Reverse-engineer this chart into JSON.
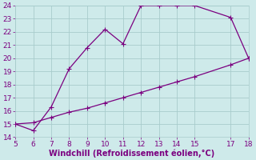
{
  "xlabel": "Windchill (Refroidissement éolien,°C)",
  "x_main": [
    5,
    6,
    7,
    8,
    9,
    10,
    11,
    12,
    13,
    14,
    15,
    17,
    18
  ],
  "y_main": [
    15,
    14.5,
    16.3,
    19.2,
    20.8,
    22.2,
    21.1,
    24.0,
    24.0,
    24.0,
    24.0,
    23.1,
    20.0
  ],
  "x_second": [
    5,
    6,
    7,
    8,
    9,
    10,
    11,
    12,
    13,
    14,
    15,
    17,
    18
  ],
  "y_second": [
    15.0,
    15.1,
    15.5,
    15.9,
    16.2,
    16.6,
    17.0,
    17.4,
    17.8,
    18.2,
    18.6,
    19.5,
    20.0
  ],
  "line_color": "#7b0080",
  "bg_color": "#ceeaea",
  "grid_color": "#a8cccc",
  "xlim": [
    5,
    18
  ],
  "ylim": [
    14,
    24
  ],
  "xticks": [
    5,
    6,
    7,
    8,
    9,
    10,
    11,
    12,
    13,
    14,
    15,
    17,
    18
  ],
  "yticks": [
    14,
    15,
    16,
    17,
    18,
    19,
    20,
    21,
    22,
    23,
    24
  ],
  "xlabel_color": "#7b0080",
  "tick_color": "#7b0080",
  "tick_fontsize": 6.5,
  "xlabel_fontsize": 7.0,
  "marker_size": 2.5,
  "linewidth": 0.9
}
